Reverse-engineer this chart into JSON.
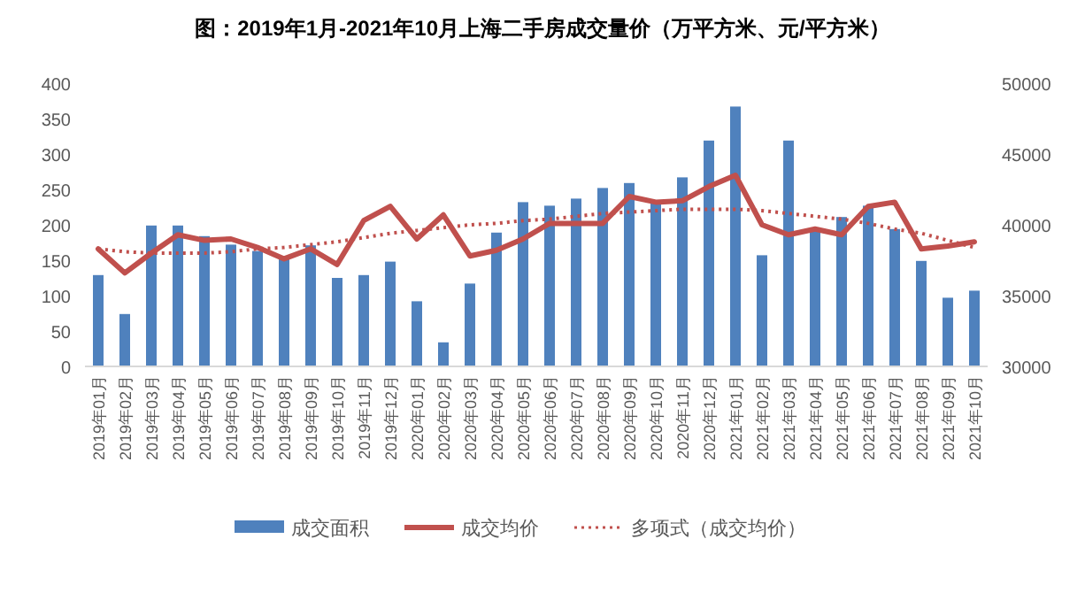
{
  "chart_data": {
    "type": "bar",
    "title": "图：2019年1月-2021年10月上海二手房成交量价（万平方米、元/平方米）",
    "categories": [
      "2019年01月",
      "2019年02月",
      "2019年03月",
      "2019年04月",
      "2019年05月",
      "2019年06月",
      "2019年07月",
      "2019年08月",
      "2019年09月",
      "2019年10月",
      "2019年11月",
      "2019年12月",
      "2020年01月",
      "2020年02月",
      "2020年03月",
      "2020年04月",
      "2020年05月",
      "2020年06月",
      "2020年07月",
      "2020年08月",
      "2020年09月",
      "2020年10月",
      "2020年11月",
      "2020年12月",
      "2021年01月",
      "2021年02月",
      "2021年03月",
      "2021年04月",
      "2021年05月",
      "2021年06月",
      "2021年07月",
      "2021年08月",
      "2021年09月",
      "2021年10月"
    ],
    "series": [
      {
        "name": "成交面积",
        "color": "#4f81bd",
        "values": [
          129,
          74,
          199,
          199,
          184,
          172,
          163,
          152,
          171,
          125,
          129,
          148,
          92,
          34,
          117,
          189,
          232,
          227,
          237,
          252,
          259,
          233,
          267,
          319,
          367,
          157,
          319,
          196,
          211,
          227,
          194,
          149,
          97,
          107
        ]
      },
      {
        "name": "成交均价",
        "type": "line",
        "axis": "y2",
        "color": "#c0504d",
        "line_style": "solid",
        "values": [
          38300,
          36600,
          38000,
          39300,
          38900,
          39000,
          38400,
          37600,
          38300,
          37200,
          40300,
          41300,
          39000,
          40700,
          37800,
          38200,
          39000,
          40100,
          40100,
          40100,
          42000,
          41600,
          41700,
          42700,
          43500,
          40000,
          39300,
          39700,
          39300,
          41300,
          41600,
          38300,
          38500,
          38800
        ]
      },
      {
        "name": "多项式（成交均价）",
        "type": "line",
        "axis": "y2",
        "color": "#c0504d",
        "line_style": "dotted",
        "values": [
          38300,
          38100,
          38000,
          38000,
          38000,
          38100,
          38300,
          38400,
          38600,
          38800,
          39100,
          39400,
          39600,
          39800,
          40000,
          40100,
          40300,
          40400,
          40600,
          40800,
          40900,
          41000,
          41100,
          41100,
          41100,
          41000,
          40800,
          40600,
          40400,
          40100,
          39700,
          39400,
          38900,
          38400
        ]
      }
    ],
    "ylim": [
      0,
      400
    ],
    "yticks": [
      0,
      50,
      100,
      150,
      200,
      250,
      300,
      350,
      400
    ],
    "y2lim": [
      30000,
      50000
    ],
    "y2ticks": [
      30000,
      35000,
      40000,
      45000,
      50000
    ],
    "legend": "bottom",
    "grid": false
  }
}
